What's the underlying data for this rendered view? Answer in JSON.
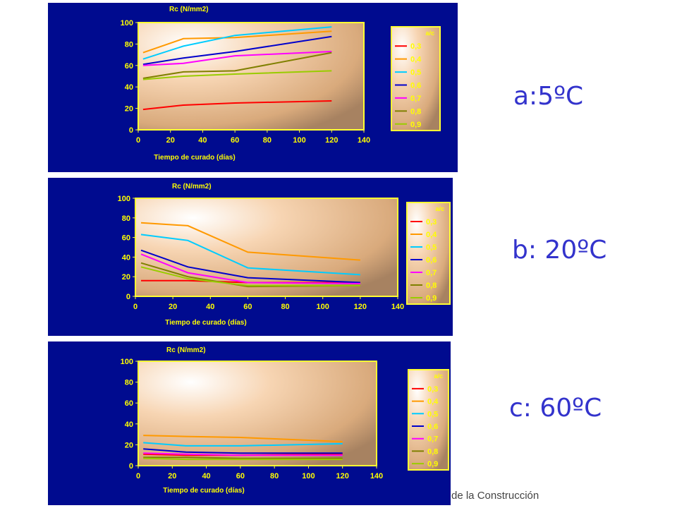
{
  "labels": [
    "a:5ºC",
    "b: 20ºC",
    "c: 60ºC"
  ],
  "footer": "de la Construcción",
  "colors": {
    "panel_bg": "#000b8f",
    "frame": "#ffff33",
    "text": "#ffff00",
    "label": "#3333cc"
  },
  "chart_data": [
    {
      "type": "line",
      "title": "Rc (N/mm2)",
      "xlabel": "Tiempo de curado (días)",
      "ylabel": "",
      "xlim": [
        0,
        140
      ],
      "ylim": [
        0,
        100
      ],
      "xticks": [
        0,
        20,
        40,
        60,
        80,
        100,
        120,
        140
      ],
      "yticks": [
        0,
        20,
        40,
        60,
        80,
        100
      ],
      "legend_title": "a/c",
      "legend_position": "right",
      "series": [
        {
          "name": "0,3",
          "color": "#ff0000",
          "x": [
            3,
            28,
            60,
            120
          ],
          "y": [
            19,
            23,
            25,
            27
          ]
        },
        {
          "name": "0,4",
          "color": "#ff9900",
          "x": [
            3,
            28,
            60,
            120
          ],
          "y": [
            72,
            85,
            86,
            92
          ]
        },
        {
          "name": "0,5",
          "color": "#00ccff",
          "x": [
            3,
            28,
            60,
            120
          ],
          "y": [
            66,
            78,
            88,
            96
          ]
        },
        {
          "name": "0,6",
          "color": "#0000cc",
          "x": [
            3,
            28,
            60,
            120
          ],
          "y": [
            61,
            67,
            73,
            87
          ]
        },
        {
          "name": "0,7",
          "color": "#ff00ff",
          "x": [
            3,
            28,
            60,
            120
          ],
          "y": [
            60,
            62,
            69,
            73
          ]
        },
        {
          "name": "0,8",
          "color": "#808000",
          "x": [
            3,
            28,
            60,
            120
          ],
          "y": [
            48,
            54,
            55,
            72
          ]
        },
        {
          "name": "0,9",
          "color": "#99cc00",
          "x": [
            3,
            28,
            60,
            120
          ],
          "y": [
            47,
            50,
            52,
            55
          ]
        }
      ]
    },
    {
      "type": "line",
      "title": "Rc (N/mm2)",
      "xlabel": "Tiempo de curado (días)",
      "ylabel": "",
      "xlim": [
        0,
        140
      ],
      "ylim": [
        0,
        100
      ],
      "xticks": [
        0,
        20,
        40,
        60,
        80,
        100,
        120,
        140
      ],
      "yticks": [
        0,
        20,
        40,
        60,
        80,
        100
      ],
      "legend_title": "a/c",
      "legend_position": "right",
      "series": [
        {
          "name": "0,3",
          "color": "#ff0000",
          "x": [
            3,
            28,
            60,
            120
          ],
          "y": [
            16,
            16,
            14,
            14
          ]
        },
        {
          "name": "0,4",
          "color": "#ff9900",
          "x": [
            3,
            28,
            60,
            120
          ],
          "y": [
            75,
            72,
            45,
            37
          ]
        },
        {
          "name": "0,5",
          "color": "#00ccff",
          "x": [
            3,
            28,
            60,
            120
          ],
          "y": [
            63,
            57,
            29,
            22
          ]
        },
        {
          "name": "0,6",
          "color": "#0000cc",
          "x": [
            3,
            28,
            60,
            120
          ],
          "y": [
            47,
            30,
            19,
            14
          ]
        },
        {
          "name": "0,7",
          "color": "#ff00ff",
          "x": [
            3,
            28,
            60,
            120
          ],
          "y": [
            43,
            24,
            14,
            13
          ]
        },
        {
          "name": "0,8",
          "color": "#808000",
          "x": [
            3,
            28,
            60,
            120
          ],
          "y": [
            34,
            20,
            10,
            11
          ]
        },
        {
          "name": "0,9",
          "color": "#99cc00",
          "x": [
            3,
            28,
            60,
            120
          ],
          "y": [
            30,
            18,
            11,
            11
          ]
        }
      ]
    },
    {
      "type": "line",
      "title": "Rc (N/mm2)",
      "xlabel": "Tiempo de curado (días)",
      "ylabel": "",
      "xlim": [
        0,
        140
      ],
      "ylim": [
        0,
        100
      ],
      "xticks": [
        0,
        20,
        40,
        60,
        80,
        100,
        120,
        140
      ],
      "yticks": [
        0,
        20,
        40,
        60,
        80,
        100
      ],
      "legend_title": "a/c",
      "legend_position": "right",
      "series": [
        {
          "name": "0,3",
          "color": "#ff0000",
          "x": [
            3,
            28,
            60,
            120
          ],
          "y": [
            11,
            10,
            10,
            11
          ]
        },
        {
          "name": "0,4",
          "color": "#ff9900",
          "x": [
            3,
            28,
            60,
            120
          ],
          "y": [
            29,
            28,
            27,
            23
          ]
        },
        {
          "name": "0,5",
          "color": "#00ccff",
          "x": [
            3,
            28,
            60,
            120
          ],
          "y": [
            22,
            19,
            19,
            21
          ]
        },
        {
          "name": "0,6",
          "color": "#0000cc",
          "x": [
            3,
            28,
            60,
            120
          ],
          "y": [
            16,
            13,
            12,
            12
          ]
        },
        {
          "name": "0,7",
          "color": "#ff00ff",
          "x": [
            3,
            28,
            60,
            120
          ],
          "y": [
            12,
            11,
            10,
            10
          ]
        },
        {
          "name": "0,8",
          "color": "#808000",
          "x": [
            3,
            28,
            60,
            120
          ],
          "y": [
            8,
            8,
            7,
            7
          ]
        },
        {
          "name": "0,9",
          "color": "#99cc00",
          "x": [
            3,
            28,
            60,
            120
          ],
          "y": [
            7,
            6,
            6,
            6
          ]
        }
      ]
    }
  ]
}
